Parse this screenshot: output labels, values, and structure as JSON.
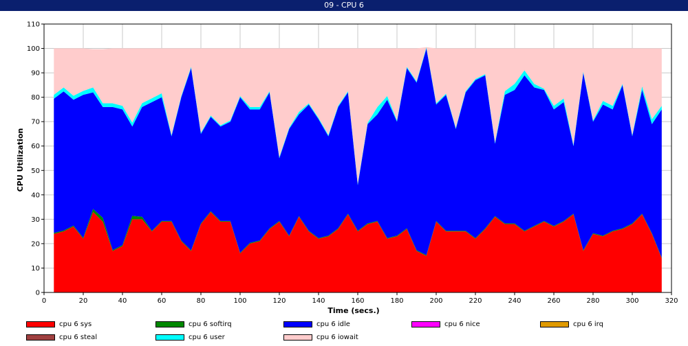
{
  "window": {
    "title": "09 - CPU 6"
  },
  "chart_data": {
    "type": "area",
    "stacked": true,
    "xlabel": "Time (secs.)",
    "ylabel": "CPU Utilization",
    "xlim": [
      0,
      320
    ],
    "ylim": [
      0,
      110
    ],
    "xticks": [
      0,
      20,
      40,
      60,
      80,
      100,
      120,
      140,
      160,
      180,
      200,
      220,
      240,
      260,
      280,
      300,
      320
    ],
    "yticks": [
      0,
      10,
      20,
      30,
      40,
      50,
      60,
      70,
      80,
      90,
      100,
      110
    ],
    "grid": true,
    "legend_position": "bottom",
    "x": [
      5,
      10,
      15,
      20,
      25,
      30,
      35,
      40,
      45,
      50,
      55,
      60,
      65,
      70,
      75,
      80,
      85,
      90,
      95,
      100,
      105,
      110,
      115,
      120,
      125,
      130,
      135,
      140,
      145,
      150,
      155,
      160,
      165,
      170,
      175,
      180,
      185,
      190,
      195,
      200,
      205,
      210,
      215,
      220,
      225,
      230,
      235,
      240,
      245,
      250,
      255,
      260,
      265,
      270,
      275,
      280,
      285,
      290,
      295,
      300,
      305,
      310,
      315
    ],
    "series": [
      {
        "name": "cpu 6 sys",
        "color": "#ff0000",
        "values": [
          24,
          25,
          27,
          22,
          33,
          29,
          17,
          19,
          30,
          30,
          25,
          29,
          29,
          21,
          17,
          28,
          33,
          29,
          29,
          16,
          20,
          21,
          26,
          29,
          23,
          31,
          25,
          22,
          23,
          26,
          32,
          25,
          28,
          29,
          22,
          23,
          26,
          17,
          15,
          29,
          25,
          25,
          25,
          22,
          26,
          31,
          28,
          28,
          25,
          27,
          29,
          27,
          29,
          32,
          17,
          24,
          23,
          25,
          26,
          28,
          32,
          24,
          14
        ]
      },
      {
        "name": "cpu 6 softirq",
        "color": "#008800",
        "values": [
          0.4,
          0.4,
          0.4,
          0.4,
          1.2,
          1.6,
          0.4,
          0.4,
          1.4,
          1,
          0.3,
          0.3,
          0.3,
          0.3,
          0.3,
          0.3,
          0.3,
          0.3,
          0.3,
          0.3,
          0.3,
          0.3,
          0.3,
          0.3,
          0.3,
          0.3,
          0.3,
          0.3,
          0.3,
          0.3,
          0.3,
          0.3,
          0.3,
          0.3,
          0.3,
          0.3,
          0.3,
          0.3,
          0.3,
          0.3,
          0.3,
          0.3,
          0.3,
          0.3,
          0.3,
          0.3,
          0.3,
          0.3,
          0.3,
          0.3,
          0.3,
          0.3,
          0.3,
          0.3,
          0.3,
          0.3,
          0.3,
          0.3,
          0.3,
          0.3,
          0.3,
          0.3,
          0.3
        ]
      },
      {
        "name": "cpu 6 idle",
        "color": "#0000ff",
        "values": [
          55,
          57,
          51.6,
          58.6,
          47.8,
          45.4,
          58.6,
          55.6,
          36.6,
          45,
          52.7,
          50.7,
          34.7,
          58.7,
          74.7,
          36.7,
          38.7,
          38.7,
          40.7,
          63.7,
          54.7,
          53.7,
          55.7,
          25.7,
          43.7,
          41.7,
          51.7,
          48.7,
          40.7,
          49.7,
          49.7,
          18.7,
          40.7,
          43.7,
          56.7,
          46.7,
          65.7,
          68.7,
          84.7,
          47.7,
          55.7,
          41.7,
          56.7,
          64.7,
          62.7,
          29.7,
          52.7,
          54.7,
          63.7,
          56.7,
          53.7,
          47.7,
          48.7,
          27.7,
          72.7,
          45.7,
          53.7,
          49.7,
          58.7,
          35.7,
          50.7,
          44.7,
          60.7
        ]
      },
      {
        "name": "cpu 6 nice",
        "color": "#ff00ff",
        "values": [
          0,
          0,
          0,
          0,
          0,
          0,
          0,
          0,
          0,
          0,
          0,
          0,
          0,
          0,
          0,
          0,
          0,
          0,
          0,
          0,
          0,
          0,
          0,
          0,
          0,
          0,
          0,
          0,
          0,
          0,
          0,
          0,
          0,
          0,
          0,
          0,
          0,
          0,
          0,
          0,
          0,
          0,
          0,
          0,
          0,
          0,
          0,
          0,
          0,
          0,
          0,
          0,
          0,
          0,
          0,
          0,
          0,
          0,
          0,
          0,
          0,
          0,
          0
        ]
      },
      {
        "name": "cpu 6 irq",
        "color": "#e09a00",
        "values": [
          0,
          0,
          0,
          0,
          0,
          0,
          0,
          0,
          0,
          0,
          0,
          0,
          0,
          0,
          0,
          0,
          0,
          0,
          0,
          0,
          0,
          0,
          0,
          0,
          0,
          0,
          0,
          0,
          0,
          0,
          0,
          0,
          0,
          0,
          0,
          0,
          0,
          0,
          0,
          0,
          0,
          0,
          0,
          0,
          0,
          0,
          0,
          0,
          0,
          0,
          0,
          0,
          0,
          0,
          0,
          0,
          0,
          0,
          0,
          0,
          0,
          0,
          0
        ]
      },
      {
        "name": "cpu 6 steal",
        "color": "#a04040",
        "values": [
          0,
          0,
          0,
          0,
          0,
          0,
          0,
          0,
          0,
          0,
          0,
          0,
          0,
          0,
          0,
          0,
          0,
          0,
          0,
          0,
          0,
          0,
          0,
          0,
          0,
          0,
          0,
          0,
          0,
          0,
          0,
          0,
          0,
          0,
          0,
          0,
          0,
          0,
          0,
          0,
          0,
          0,
          0,
          0,
          0,
          0,
          0,
          0,
          0,
          0,
          0,
          0,
          0,
          0,
          0,
          0,
          0,
          0,
          0,
          0,
          0,
          0,
          0
        ]
      },
      {
        "name": "cpu 6 user",
        "color": "#00ffff",
        "values": [
          1.6,
          1.6,
          1.6,
          1.6,
          2,
          1.5,
          1.5,
          1.5,
          1.6,
          1.6,
          1.6,
          1.6,
          0.5,
          0.5,
          0.5,
          0.5,
          0.5,
          0.5,
          0.5,
          0.5,
          1,
          1,
          0.5,
          0.5,
          0.5,
          1,
          0.5,
          0.5,
          0.5,
          0.5,
          0.5,
          0.5,
          0.5,
          3,
          1.5,
          0.5,
          0.5,
          0.5,
          0.5,
          0.5,
          0.5,
          0.5,
          0.5,
          0.5,
          0.5,
          0.5,
          1.5,
          2.5,
          2,
          1.5,
          0.5,
          1.5,
          1.5,
          0.5,
          0.5,
          0.5,
          1.5,
          1.5,
          0.5,
          0.5,
          1.5,
          2,
          1.5
        ]
      },
      {
        "name": "cpu 6 iowait",
        "color": "#ffcccc",
        "values": [
          19,
          16,
          19.4,
          17.4,
          15.7,
          22.2,
          22.5,
          23.5,
          30.4,
          22.4,
          20.4,
          18.4,
          35.5,
          19.5,
          7.5,
          34.5,
          27.5,
          31.5,
          29.5,
          19.5,
          24,
          24,
          17.5,
          44.5,
          32.5,
          26,
          22.5,
          28.5,
          35.5,
          23.5,
          17.5,
          55.5,
          30.5,
          24,
          19.5,
          29.5,
          7.5,
          13.5,
          0,
          22.5,
          18.5,
          32.5,
          17.5,
          12.5,
          10.5,
          38.5,
          17.5,
          14.5,
          9,
          14.5,
          16.5,
          23.5,
          20.5,
          39.5,
          9.5,
          29.5,
          21.5,
          23.5,
          14.5,
          35.5,
          15.5,
          29,
          23.5
        ]
      }
    ]
  }
}
